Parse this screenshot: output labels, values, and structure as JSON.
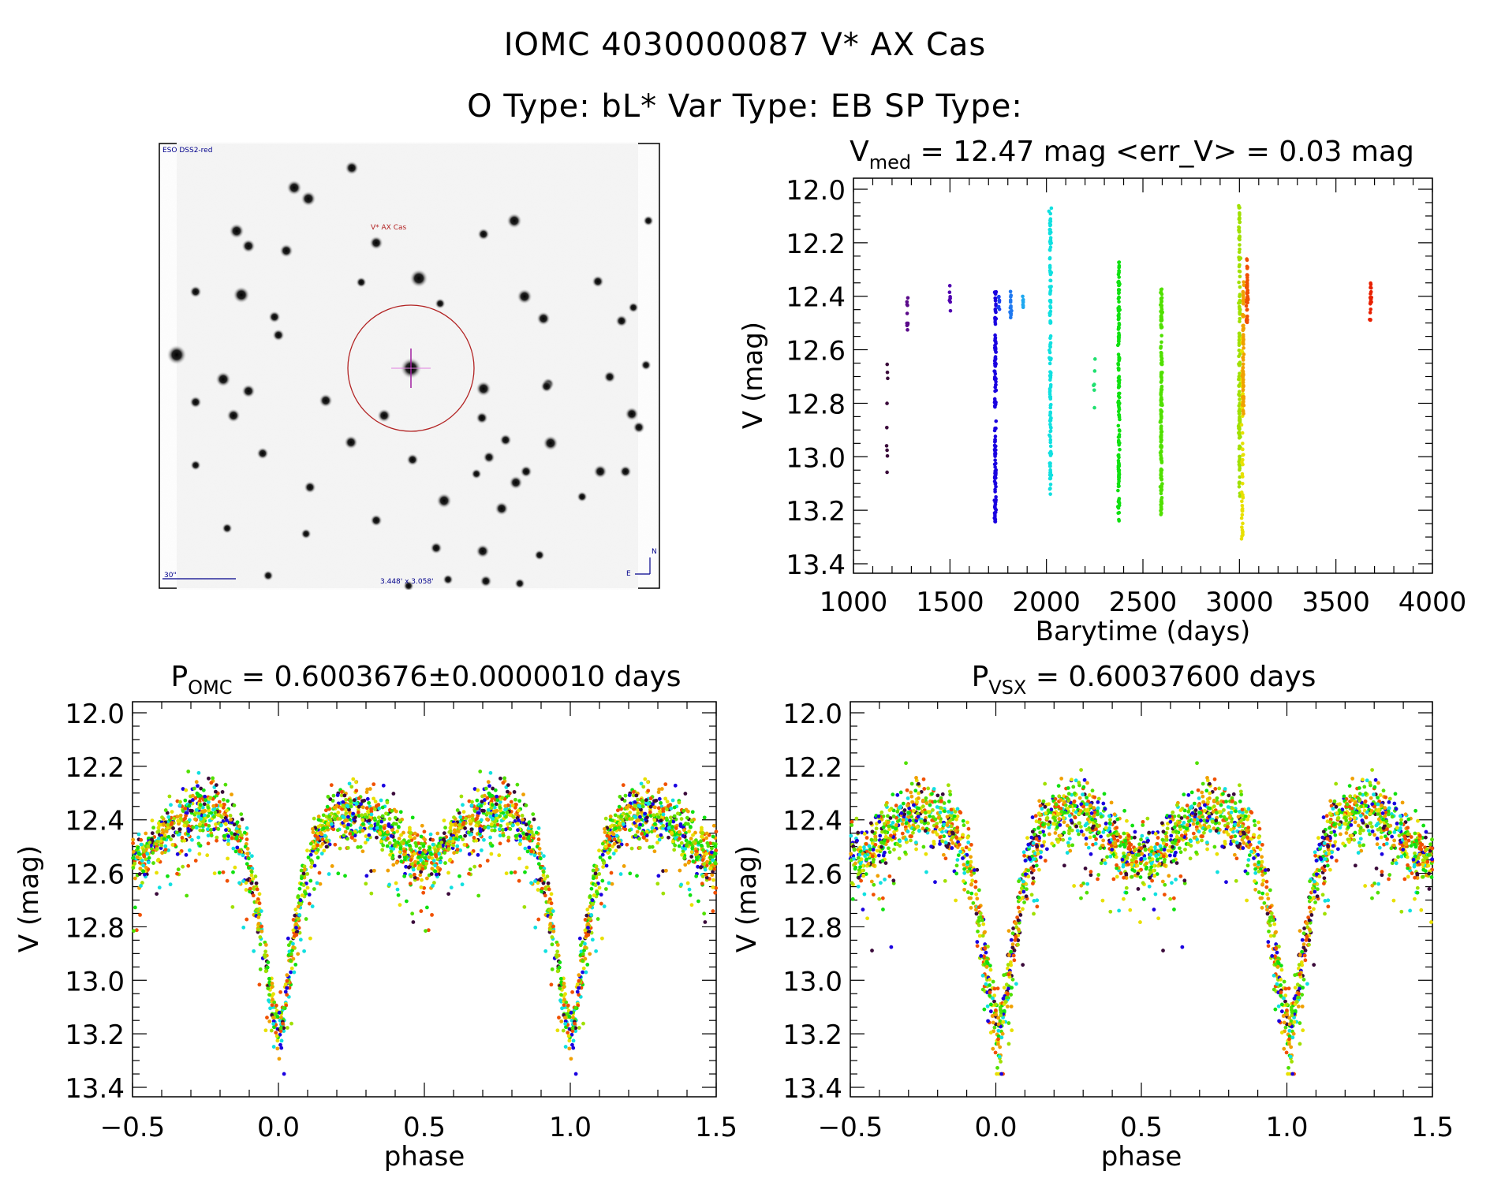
{
  "header": {
    "title_line1": "IOMC 4030000087    V* AX Cas",
    "title_line2": "O Type: bL*   Var Type: EB   SP Type:"
  },
  "finder_chart": {
    "survey_label": "ESO DSS2-red",
    "target_label": "V* AX Cas",
    "scale_label": "30\"",
    "field_size_label": "3.448' x 3.058'",
    "north_label": "N",
    "east_label": "E",
    "colors": {
      "annotation": "#00008b",
      "target": "#b22222",
      "crosshair": "#a020a0"
    }
  },
  "chart_data": [
    {
      "id": "lightcurve",
      "type": "scatter",
      "title_main": "V",
      "title_sub": "med",
      "title_rest": " = 12.47 mag <err_V> = 0.03 mag",
      "xlabel": "Barytime (days)",
      "ylabel": "V (mag)",
      "xlim": [
        1000,
        4000
      ],
      "ylim": [
        13.4,
        12.0
      ],
      "y_inverted": true,
      "xticks": [
        1000,
        1500,
        2000,
        2500,
        3000,
        3500,
        4000
      ],
      "xtick_labels": [
        "1000",
        "1500",
        "2000",
        "2500",
        "3000",
        "3500",
        "4000"
      ],
      "yticks": [
        12.0,
        12.2,
        12.4,
        12.6,
        12.8,
        13.0,
        13.2,
        13.4
      ],
      "ytick_labels": [
        "12.0",
        "12.2",
        "12.4",
        "12.6",
        "12.8",
        "13.0",
        "13.2",
        "13.4"
      ],
      "color_scale": "rainbow by observation time",
      "groups": [
        {
          "x": 1175,
          "ymin": 12.57,
          "ymax": 13.06,
          "n": 9,
          "color": "#3a0a3a"
        },
        {
          "x": 1280,
          "ymin": 12.37,
          "ymax": 12.53,
          "n": 10,
          "color": "#5a0a8a"
        },
        {
          "x": 1500,
          "ymin": 12.36,
          "ymax": 12.46,
          "n": 7,
          "color": "#5000b0"
        },
        {
          "x": 1735,
          "ymin": 12.38,
          "ymax": 13.25,
          "n": 140,
          "color": "#1a00e0"
        },
        {
          "x": 1755,
          "ymin": 12.4,
          "ymax": 12.45,
          "n": 8,
          "color": "#1a40f0"
        },
        {
          "x": 1815,
          "ymin": 12.38,
          "ymax": 12.48,
          "n": 14,
          "color": "#1e78f0"
        },
        {
          "x": 1880,
          "ymin": 12.4,
          "ymax": 12.45,
          "n": 7,
          "color": "#1ea8f0"
        },
        {
          "x": 2020,
          "ymin": 12.07,
          "ymax": 13.15,
          "n": 130,
          "color": "#10e0e0"
        },
        {
          "x": 2250,
          "ymin": 12.57,
          "ymax": 12.84,
          "n": 6,
          "color": "#20e070"
        },
        {
          "x": 2375,
          "ymin": 12.27,
          "ymax": 13.24,
          "n": 150,
          "color": "#10e010"
        },
        {
          "x": 2595,
          "ymin": 12.37,
          "ymax": 13.22,
          "n": 170,
          "color": "#50e000"
        },
        {
          "x": 3000,
          "ymin": 12.06,
          "ymax": 13.15,
          "n": 130,
          "color": "#a0e000"
        },
        {
          "x": 3015,
          "ymin": 12.5,
          "ymax": 13.31,
          "n": 60,
          "color": "#e8e000"
        },
        {
          "x": 3020,
          "ymin": 12.33,
          "ymax": 12.85,
          "n": 60,
          "color": "#f0a000"
        },
        {
          "x": 3040,
          "ymin": 12.26,
          "ymax": 12.5,
          "n": 50,
          "color": "#f05000"
        },
        {
          "x": 3680,
          "ymin": 12.34,
          "ymax": 12.51,
          "n": 20,
          "color": "#e82000"
        }
      ]
    },
    {
      "id": "phase_omc",
      "type": "scatter",
      "title_main": "P",
      "title_sub": "OMC",
      "title_rest": " = 0.6003676±0.0000010 days",
      "period_days": 0.6003676,
      "period_error_days": 1e-06,
      "xlabel": "phase",
      "ylabel": "V (mag)",
      "xlim": [
        -0.5,
        1.5
      ],
      "ylim": [
        13.4,
        12.0
      ],
      "y_inverted": true,
      "xticks": [
        -0.5,
        0.0,
        0.5,
        1.0,
        1.5
      ],
      "xtick_labels": [
        "−0.5",
        "0.0",
        "0.5",
        "1.0",
        "1.5"
      ],
      "yticks": [
        12.0,
        12.2,
        12.4,
        12.6,
        12.8,
        13.0,
        13.2,
        13.4
      ],
      "ytick_labels": [
        "12.0",
        "12.2",
        "12.4",
        "12.6",
        "12.8",
        "13.0",
        "13.2",
        "13.4"
      ],
      "curve": {
        "max_mag": 12.41,
        "primary_min_phase": 0.0,
        "primary_min_mag": 13.15,
        "secondary_min_phase": 0.5,
        "secondary_min_mag": 12.56,
        "scatter_mag": 0.05
      }
    },
    {
      "id": "phase_vsx",
      "type": "scatter",
      "title_main": "P",
      "title_sub": "VSX",
      "title_rest": " = 0.60037600 days",
      "period_days": 0.600376,
      "xlabel": "phase",
      "ylabel": "V (mag)",
      "xlim": [
        -0.5,
        1.5
      ],
      "ylim": [
        13.4,
        12.0
      ],
      "y_inverted": true,
      "xticks": [
        -0.5,
        0.0,
        0.5,
        1.0,
        1.5
      ],
      "xtick_labels": [
        "−0.5",
        "0.0",
        "0.5",
        "1.0",
        "1.5"
      ],
      "yticks": [
        12.0,
        12.2,
        12.4,
        12.6,
        12.8,
        13.0,
        13.2,
        13.4
      ],
      "ytick_labels": [
        "12.0",
        "12.2",
        "12.4",
        "12.6",
        "12.8",
        "13.0",
        "13.2",
        "13.4"
      ],
      "curve": {
        "max_mag": 12.41,
        "primary_min_phase": 0.01,
        "primary_min_mag": 13.15,
        "secondary_min_phase": 0.51,
        "secondary_min_mag": 12.56,
        "scatter_mag": 0.06
      }
    }
  ],
  "palette": [
    "#3a0a3a",
    "#1a00e0",
    "#10e0e0",
    "#10e010",
    "#50e000",
    "#a0e000",
    "#e8e000",
    "#f0a000",
    "#f05000"
  ]
}
